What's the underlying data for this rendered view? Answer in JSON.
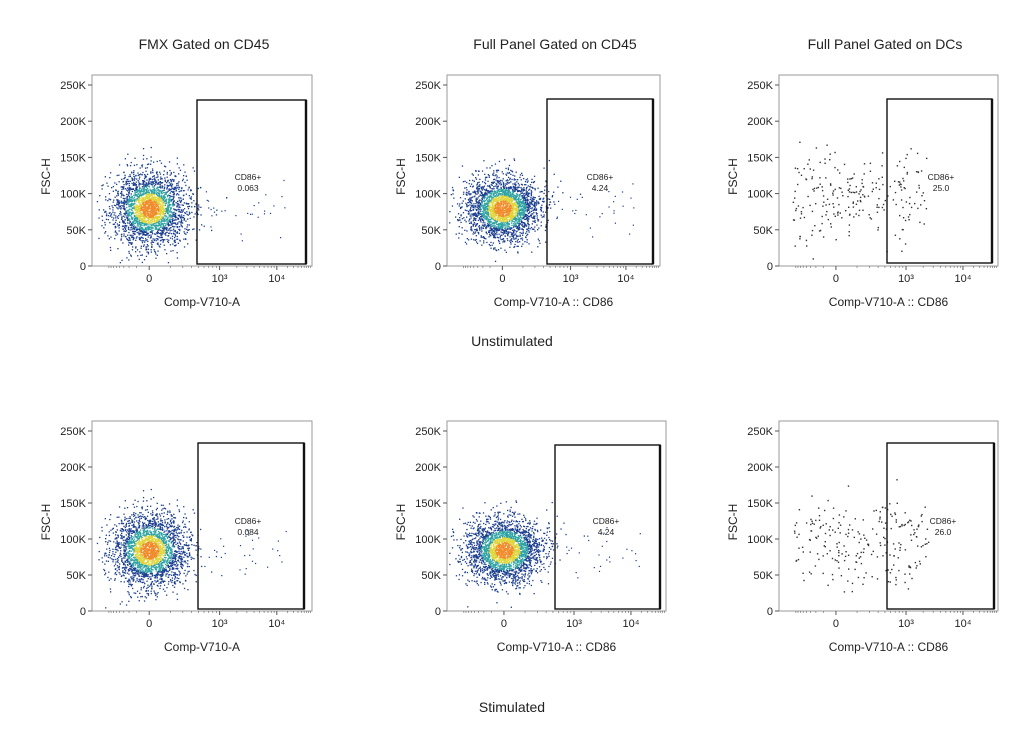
{
  "column_titles": [
    "FMX Gated on CD45",
    "Full Panel Gated on CD45",
    "Full Panel Gated on DCs"
  ],
  "row_titles": [
    "Unstimulated",
    "Stimulated"
  ],
  "colors": {
    "density_low": "#1a3d8f",
    "density_mid": "#2fa3a3",
    "density_high": "#e0d53a",
    "density_peak": "#f08a2a",
    "sparse": "#333333",
    "gate": "#111111"
  },
  "chart_data": [
    {
      "type": "scatter",
      "panel": "Unstimulated / FMX Gated on CD45",
      "xlabel": "Comp-V710-A",
      "ylabel": "FSC-H",
      "ylim": [
        0,
        250000
      ],
      "x_scale": "biexponential",
      "x_ticks": [
        "0",
        "10³",
        "10⁴"
      ],
      "y_ticks": [
        "0",
        "50K",
        "100K",
        "150K",
        "200K",
        "250K"
      ],
      "gate": {
        "name": "CD86+",
        "value": "0.063"
      },
      "population": {
        "style": "density",
        "x_center": 0,
        "y_center": 80000,
        "y_sd": 25000
      }
    },
    {
      "type": "scatter",
      "panel": "Unstimulated / Full Panel Gated on CD45",
      "xlabel": "Comp-V710-A :: CD86",
      "ylabel": "FSC-H",
      "ylim": [
        0,
        250000
      ],
      "x_scale": "biexponential",
      "x_ticks": [
        "0",
        "10³",
        "10⁴"
      ],
      "y_ticks": [
        "0",
        "50K",
        "100K",
        "150K",
        "200K",
        "250K"
      ],
      "gate": {
        "name": "CD86+",
        "value": "4.24"
      },
      "population": {
        "style": "density",
        "x_center": 0,
        "y_center": 80000,
        "y_sd": 22000
      }
    },
    {
      "type": "scatter",
      "panel": "Unstimulated / Full Panel Gated on DCs",
      "xlabel": "Comp-V710-A :: CD86",
      "ylabel": "FSC-H",
      "ylim": [
        0,
        250000
      ],
      "x_scale": "biexponential",
      "x_ticks": [
        "0",
        "10³",
        "10⁴"
      ],
      "y_ticks": [
        "0",
        "50K",
        "100K",
        "150K",
        "200K",
        "250K"
      ],
      "gate": {
        "name": "CD86+",
        "value": "25.0"
      },
      "population": {
        "style": "sparse",
        "x_center": 0,
        "y_center": 95000,
        "y_sd": 30000
      }
    },
    {
      "type": "scatter",
      "panel": "Stimulated / FMX Gated on CD45",
      "xlabel": "Comp-V710-A",
      "ylabel": "FSC-H",
      "ylim": [
        0,
        250000
      ],
      "x_scale": "biexponential",
      "x_ticks": [
        "0",
        "10³",
        "10⁴"
      ],
      "y_ticks": [
        "0",
        "50K",
        "100K",
        "150K",
        "200K",
        "250K"
      ],
      "gate": {
        "name": "CD86+",
        "value": "0.084"
      },
      "population": {
        "style": "density",
        "x_center": 0,
        "y_center": 85000,
        "y_sd": 25000
      }
    },
    {
      "type": "scatter",
      "panel": "Stimulated / Full Panel Gated on CD45",
      "xlabel": "Comp-V710-A :: CD86",
      "ylabel": "FSC-H",
      "ylim": [
        0,
        250000
      ],
      "x_scale": "biexponential",
      "x_ticks": [
        "0",
        "10³",
        "10⁴"
      ],
      "y_ticks": [
        "0",
        "50K",
        "100K",
        "150K",
        "200K",
        "250K"
      ],
      "gate": {
        "name": "CD86+",
        "value": "4.24"
      },
      "population": {
        "style": "density",
        "x_center": 0,
        "y_center": 85000,
        "y_sd": 22000
      }
    },
    {
      "type": "scatter",
      "panel": "Stimulated / Full Panel Gated on DCs",
      "xlabel": "Comp-V710-A :: CD86",
      "ylabel": "FSC-H",
      "ylim": [
        0,
        250000
      ],
      "x_scale": "biexponential",
      "x_ticks": [
        "0",
        "10³",
        "10⁴"
      ],
      "y_ticks": [
        "0",
        "50K",
        "100K",
        "150K",
        "200K",
        "250K"
      ],
      "gate": {
        "name": "CD86+",
        "value": "26.0"
      },
      "population": {
        "style": "sparse",
        "x_center": 0,
        "y_center": 95000,
        "y_sd": 30000
      }
    }
  ]
}
